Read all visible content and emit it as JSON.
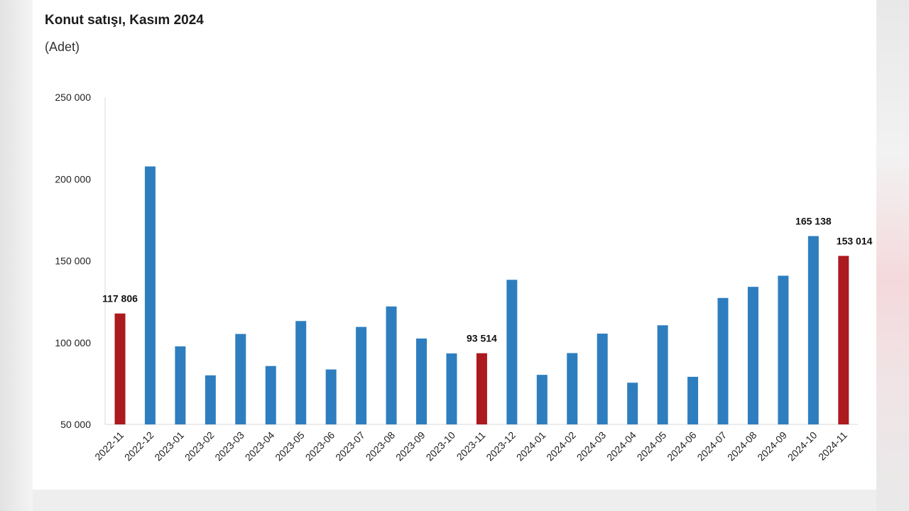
{
  "title": "Konut satışı, Kasım 2024",
  "subtitle": "(Adet)",
  "colors": {
    "regular": "#2e7ebf",
    "highlight": "#ab1a1f",
    "axis": "#d9d9d9",
    "label": "#222222"
  },
  "chart_data": {
    "type": "bar",
    "title": "Konut satışı, Kasım 2024",
    "subtitle": "(Adet)",
    "xlabel": "",
    "ylabel": "",
    "ylim": [
      50000,
      250000
    ],
    "y_ticks": [
      50000,
      100000,
      150000,
      200000,
      250000
    ],
    "y_tick_labels": [
      "50 000",
      "100 000",
      "150 000",
      "200 000",
      "250 000"
    ],
    "grid": false,
    "categories": [
      "2022-11",
      "2022-12",
      "2023-01",
      "2023-02",
      "2023-03",
      "2023-04",
      "2023-05",
      "2023-06",
      "2023-07",
      "2023-08",
      "2023-09",
      "2023-10",
      "2023-11",
      "2023-12",
      "2024-01",
      "2024-02",
      "2024-03",
      "2024-04",
      "2024-05",
      "2024-06",
      "2024-07",
      "2024-08",
      "2024-09",
      "2024-10",
      "2024-11"
    ],
    "values": [
      117806,
      207700,
      97700,
      80000,
      105300,
      85700,
      113200,
      83600,
      109600,
      122100,
      102500,
      93400,
      93514,
      138400,
      80300,
      93600,
      105500,
      75500,
      110600,
      79100,
      127300,
      134100,
      140900,
      165138,
      153014
    ],
    "highlighted": [
      true,
      false,
      false,
      false,
      false,
      false,
      false,
      false,
      false,
      false,
      false,
      false,
      true,
      false,
      false,
      false,
      false,
      false,
      false,
      false,
      false,
      false,
      false,
      false,
      true
    ],
    "data_labels": [
      {
        "index": 0,
        "text": "117 806"
      },
      {
        "index": 12,
        "text": "93 514"
      },
      {
        "index": 23,
        "text": "165 138"
      },
      {
        "index": 24,
        "text": "153 014"
      }
    ]
  }
}
